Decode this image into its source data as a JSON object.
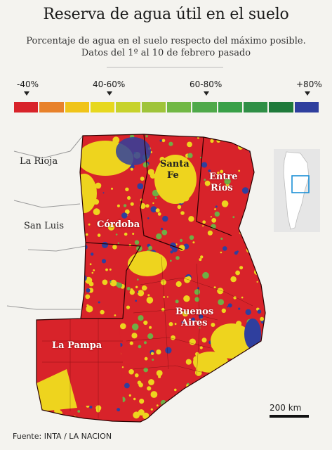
{
  "header": {
    "title": "Reserva de agua útil en el suelo",
    "subtitle_line1": "Porcentaje de agua en el suelo respecto del máximo posible.",
    "subtitle_line2": "Datos del 1º al 10 de febrero pasado"
  },
  "legend": {
    "labels": [
      "-40%",
      "40-60%",
      "60-80%",
      "+80%"
    ],
    "colors": [
      "#d8232a",
      "#e8812a",
      "#f0c419",
      "#e7d81f",
      "#c7d22b",
      "#9fc43a",
      "#71b845",
      "#4fa94a",
      "#39a048",
      "#2f8f46",
      "#1f7a3b",
      "#2f3f9e"
    ]
  },
  "map": {
    "places": {
      "la_rioja": "La Rioja",
      "san_luis": "San Luis",
      "cordoba": "Córdoba",
      "santa_fe_1": "Santa",
      "santa_fe_2": "Fe",
      "entre_rios_1": "Entre",
      "entre_rios_2": "Ríos",
      "buenos_aires_1": "Buenos",
      "buenos_aires_2": "Aires",
      "la_pampa": "La Pampa"
    },
    "colors": {
      "dry": "#d8232a",
      "mid": "#eed41e",
      "wet": "#2f3f9e",
      "green": "#6fae45",
      "land": "#f4f3ef"
    },
    "scale_label": "200 km"
  },
  "footer": {
    "source": "Fuente: INTA / LA NACION"
  }
}
